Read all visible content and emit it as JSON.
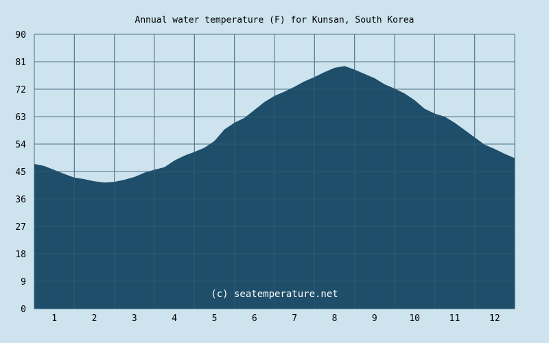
{
  "chart_data": {
    "type": "area",
    "title": "Annual water temperature (F) for Kunsan, South Korea",
    "xlabel": "",
    "ylabel": "",
    "watermark": "(c) seatemperature.net",
    "ylim": [
      0,
      90
    ],
    "yticks": [
      "0",
      "9",
      "18",
      "27",
      "36",
      "45",
      "54",
      "63",
      "72",
      "81",
      "90"
    ],
    "xlim": [
      0.5,
      12.5
    ],
    "xticks": [
      "1",
      "2",
      "3",
      "4",
      "5",
      "6",
      "7",
      "8",
      "9",
      "10",
      "11",
      "12"
    ],
    "grid": true,
    "colors": {
      "background": "#cde3ee",
      "fill": "#1f4e6a",
      "grid": "#4a6f85"
    },
    "series": [
      {
        "x": [
          0.5,
          0.75,
          1.0,
          1.25,
          1.5,
          1.75,
          2.0,
          2.25,
          2.5,
          2.75,
          3.0,
          3.25,
          3.5,
          3.75,
          4.0,
          4.25,
          4.5,
          4.75,
          5.0,
          5.25,
          5.5,
          5.75,
          6.0,
          6.25,
          6.5,
          6.75,
          7.0,
          7.25,
          7.5,
          7.75,
          8.0,
          8.25,
          8.5,
          8.75,
          9.0,
          9.25,
          9.5,
          9.75,
          10.0,
          10.25,
          10.5,
          10.75,
          11.0,
          11.25,
          11.5,
          11.75,
          12.0,
          12.25,
          12.5
        ],
        "values": [
          47.5,
          46.8,
          45.5,
          44.2,
          43.0,
          42.5,
          41.8,
          41.4,
          41.6,
          42.3,
          43.2,
          44.6,
          45.6,
          46.4,
          48.6,
          50.2,
          51.4,
          52.8,
          55.0,
          58.8,
          61.0,
          62.6,
          65.2,
          67.8,
          69.8,
          71.2,
          72.8,
          74.6,
          76.0,
          77.6,
          79.0,
          79.6,
          78.4,
          77.0,
          75.6,
          73.6,
          72.2,
          70.6,
          68.4,
          65.6,
          64.0,
          63.0,
          61.0,
          58.6,
          56.2,
          53.8,
          52.4,
          50.8,
          49.4
        ]
      }
    ]
  }
}
